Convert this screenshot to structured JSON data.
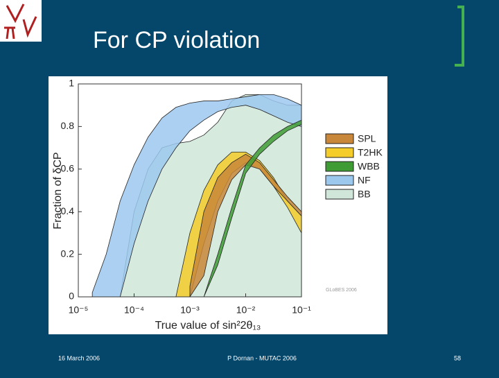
{
  "slide": {
    "title": "For CP violation",
    "footer_left": "16 March 2006",
    "footer_center": "P Dornan - MUTAC 2006",
    "page_number": "58"
  },
  "chart_data": {
    "type": "band",
    "x_label": "True value of sin²2θ₁₃",
    "y_label": "Fraction of δCP",
    "annotation": "GLoBES 2006",
    "x_log": true,
    "xlim": [
      1e-05,
      0.1
    ],
    "ylim": [
      0,
      1
    ],
    "xticks": [
      {
        "value": 1e-05,
        "label": "10⁻⁵"
      },
      {
        "value": 0.0001,
        "label": "10⁻⁴"
      },
      {
        "value": 0.001,
        "label": "10⁻³"
      },
      {
        "value": 0.01,
        "label": "10⁻²"
      },
      {
        "value": 0.1,
        "label": "10⁻¹"
      }
    ],
    "yticks": [
      0,
      0.2,
      0.4,
      0.6,
      0.8,
      1
    ],
    "x": [
      1e-05,
      1.78e-05,
      3.16e-05,
      5.62e-05,
      0.0001,
      0.000178,
      0.000316,
      0.000562,
      0.001,
      0.00178,
      0.00316,
      0.00562,
      0.01,
      0.0178,
      0.0316,
      0.0562,
      0.1
    ],
    "series": [
      {
        "name": "BB",
        "color": "#cfe6d8",
        "upper": [
          null,
          null,
          null,
          0,
          0.4,
          0.6,
          0.7,
          0.72,
          0.73,
          0.76,
          0.82,
          0.92,
          0.95,
          0.95,
          0.92,
          0.9,
          0.9
        ],
        "lower": [
          null,
          null,
          null,
          0,
          0,
          0,
          0,
          0,
          0,
          0,
          0,
          0,
          0,
          0,
          0,
          0,
          0
        ]
      },
      {
        "name": "NF",
        "color": "#9cc8ee",
        "upper": [
          null,
          0.02,
          0.2,
          0.45,
          0.62,
          0.75,
          0.84,
          0.89,
          0.91,
          0.92,
          0.92,
          0.93,
          0.94,
          0.95,
          0.95,
          0.93,
          0.9
        ],
        "lower": [
          null,
          0,
          0,
          0,
          0.25,
          0.45,
          0.6,
          0.7,
          0.78,
          0.83,
          0.87,
          0.89,
          0.9,
          0.88,
          0.85,
          0.82,
          0.8
        ]
      },
      {
        "name": "T2HK",
        "color": "#f5cd2a",
        "upper": [
          null,
          null,
          null,
          null,
          null,
          null,
          null,
          0,
          0.3,
          0.5,
          0.62,
          0.68,
          0.68,
          0.64,
          0.56,
          0.45,
          0.38
        ],
        "lower": [
          null,
          null,
          null,
          null,
          null,
          null,
          null,
          0,
          0,
          0.25,
          0.45,
          0.58,
          0.63,
          0.6,
          0.52,
          0.42,
          0.3
        ]
      },
      {
        "name": "SPL",
        "color": "#c8873a",
        "upper": [
          null,
          null,
          null,
          null,
          null,
          null,
          null,
          null,
          0.05,
          0.4,
          0.56,
          0.63,
          0.67,
          0.63,
          0.55,
          0.47,
          0.4
        ],
        "lower": [
          null,
          null,
          null,
          null,
          null,
          null,
          null,
          null,
          0,
          0.1,
          0.4,
          0.55,
          0.62,
          0.6,
          0.52,
          0.45,
          0.38
        ]
      },
      {
        "name": "WBB",
        "color": "#3f9c35",
        "upper": [
          null,
          null,
          null,
          null,
          null,
          null,
          null,
          null,
          null,
          0,
          0.2,
          0.42,
          0.62,
          0.7,
          0.76,
          0.8,
          0.83
        ],
        "lower": [
          null,
          null,
          null,
          null,
          null,
          null,
          null,
          null,
          null,
          0,
          0.15,
          0.37,
          0.58,
          0.67,
          0.73,
          0.78,
          0.81
        ]
      }
    ],
    "legend_order": [
      "SPL",
      "T2HK",
      "WBB",
      "NF",
      "BB"
    ]
  }
}
